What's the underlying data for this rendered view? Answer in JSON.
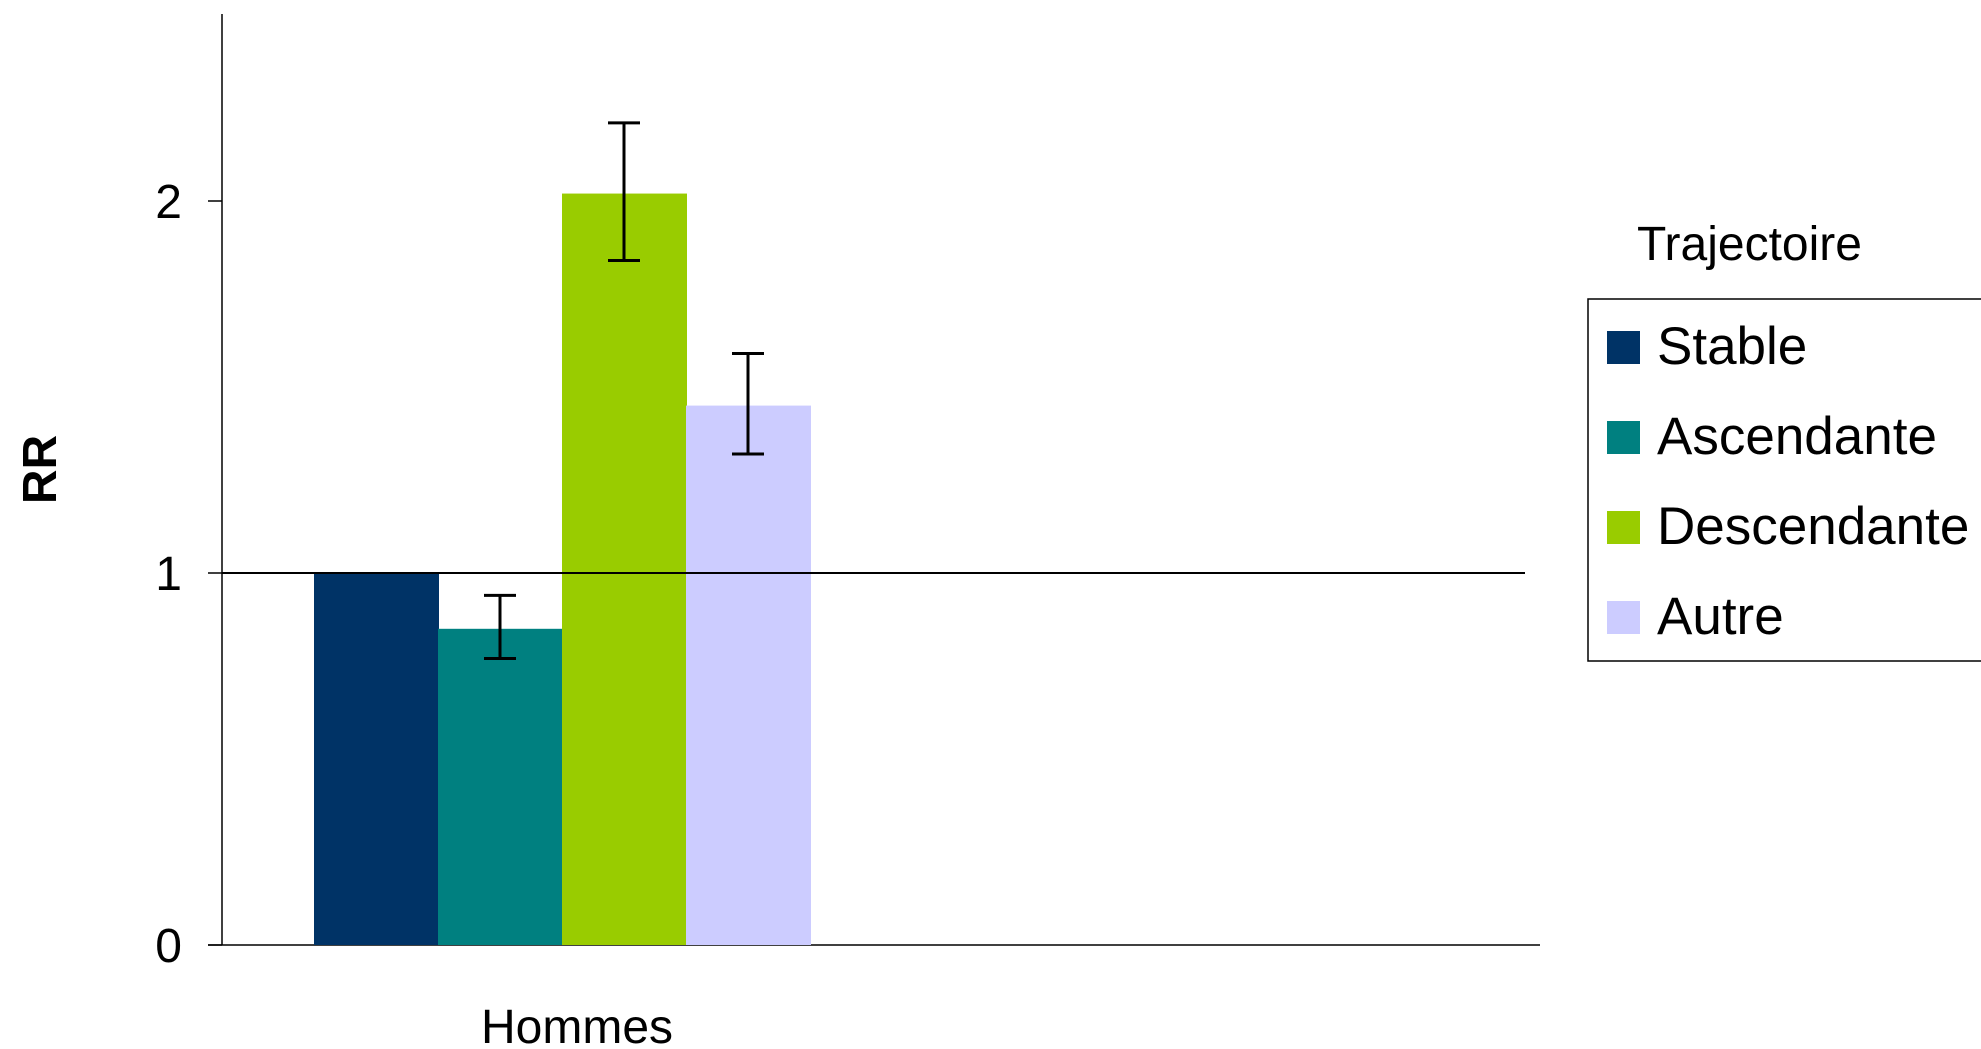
{
  "chart_data": {
    "type": "bar",
    "categories": [
      "Hommes"
    ],
    "ylabel": "RR",
    "xlabel": "",
    "ylim": [
      0,
      2.5
    ],
    "yticks": [
      0,
      1,
      2
    ],
    "reference_line": 1,
    "grid": false,
    "legend_title": "Trajectoire",
    "legend_position": "right",
    "series": [
      {
        "name": "Stable",
        "color": "#003366",
        "values": [
          1.0
        ],
        "error": null
      },
      {
        "name": "Ascendante",
        "color": "#008080",
        "values": [
          0.85
        ],
        "error": [
          0.77,
          0.94
        ]
      },
      {
        "name": "Descendante",
        "color": "#99CC00",
        "values": [
          2.02
        ],
        "error": [
          1.84,
          2.21
        ]
      },
      {
        "name": "Autre",
        "color": "#CCCCFF",
        "values": [
          1.45
        ],
        "error": [
          1.32,
          1.59
        ]
      }
    ]
  }
}
